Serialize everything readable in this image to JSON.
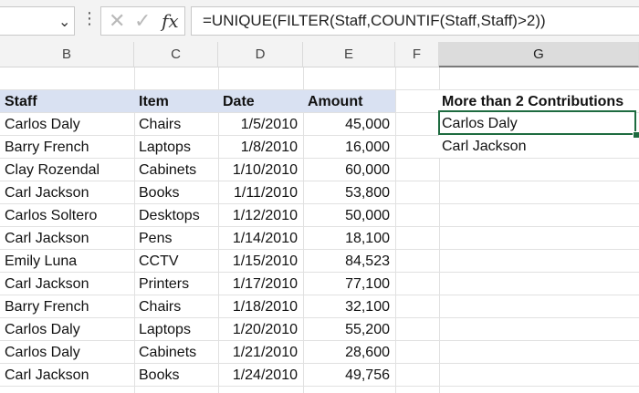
{
  "formula_bar": {
    "name_box_value": "",
    "formula": "=UNIQUE(FILTER(Staff,COUNTIF(Staff,Staff)>2))"
  },
  "columns": [
    "B",
    "C",
    "D",
    "E",
    "F",
    "G"
  ],
  "table": {
    "headers": [
      "Staff",
      "Item",
      "Date",
      "Amount"
    ],
    "rows": [
      [
        "Carlos Daly",
        "Chairs",
        "1/5/2010",
        "45,000"
      ],
      [
        "Barry French",
        "Laptops",
        "1/8/2010",
        "16,000"
      ],
      [
        "Clay Rozendal",
        "Cabinets",
        "1/10/2010",
        "60,000"
      ],
      [
        "Carl Jackson",
        "Books",
        "1/11/2010",
        "53,800"
      ],
      [
        "Carlos Soltero",
        "Desktops",
        "1/12/2010",
        "50,000"
      ],
      [
        "Carl Jackson",
        "Pens",
        "1/14/2010",
        "18,100"
      ],
      [
        "Emily Luna",
        "CCTV",
        "1/15/2010",
        "84,523"
      ],
      [
        "Carl Jackson",
        "Printers",
        "1/17/2010",
        "77,100"
      ],
      [
        "Barry French",
        "Chairs",
        "1/18/2010",
        "32,100"
      ],
      [
        "Carlos Daly",
        "Laptops",
        "1/20/2010",
        "55,200"
      ],
      [
        "Carlos Daly",
        "Cabinets",
        "1/21/2010",
        "28,600"
      ],
      [
        "Carl Jackson",
        "Books",
        "1/24/2010",
        "49,756"
      ]
    ]
  },
  "result": {
    "header": "More than 2 Contributions",
    "values": [
      "Carlos Daly",
      "Carl Jackson"
    ]
  },
  "colors": {
    "header_fill": "#d9e1f2",
    "active_cell_border": "#1e6b40"
  }
}
